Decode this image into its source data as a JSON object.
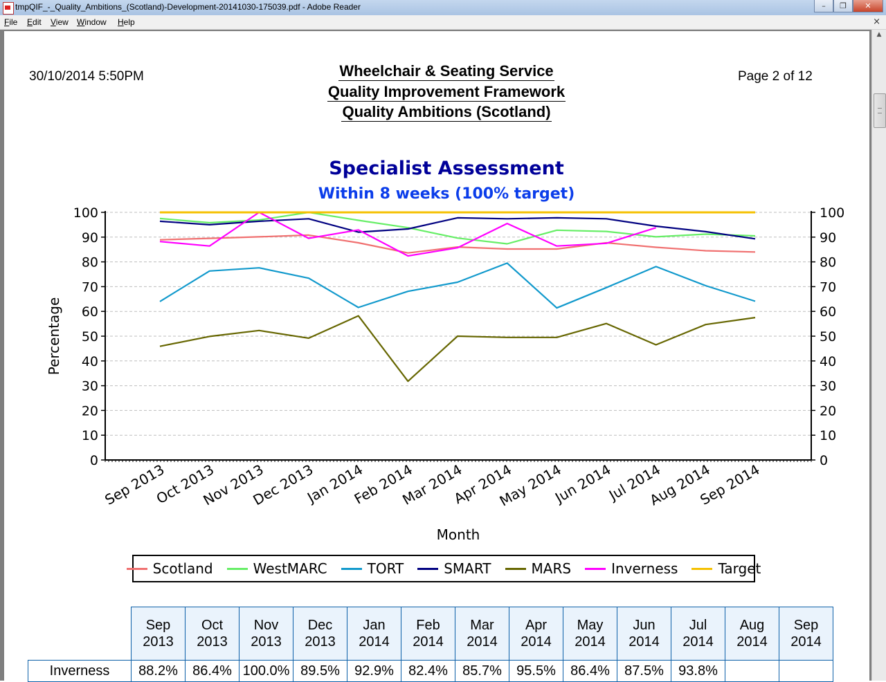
{
  "window": {
    "title": "tmpQIF_-_Quality_Ambitions_(Scotland)-Development-20141030-175039.pdf - Adobe Reader",
    "minimize": "–",
    "maximize": "❐",
    "close": "✕"
  },
  "menu": [
    "File",
    "Edit",
    "View",
    "Window",
    "Help"
  ],
  "menu_close": "×",
  "report": {
    "date": "30/10/2014 5:50PM",
    "page": "Page 2 of 12",
    "title_lines": [
      "Wheelchair & Seating Service",
      "Quality Improvement Framework",
      "Quality Ambitions (Scotland)"
    ]
  },
  "chart_data": {
    "type": "line",
    "title": "Specialist Assessment",
    "subtitle": "Within 8 weeks (100% target)",
    "xlabel": "Month",
    "ylabel": "Percentage",
    "ylim": [
      0,
      100
    ],
    "yticks": [
      0,
      10,
      20,
      30,
      40,
      50,
      60,
      70,
      80,
      90,
      100
    ],
    "grid": true,
    "legend_position": "bottom",
    "categories": [
      "Sep 2013",
      "Oct 2013",
      "Nov 2013",
      "Dec 2013",
      "Jan 2014",
      "Feb 2014",
      "Mar 2014",
      "Apr 2014",
      "May 2014",
      "Jun 2014",
      "Jul 2014",
      "Aug 2014",
      "Sep 2014"
    ],
    "series": [
      {
        "name": "Scotland",
        "color": "#f07070",
        "values": [
          88.9,
          89.5,
          90.1,
          90.8,
          87.7,
          83.6,
          86.0,
          85.2,
          85.2,
          87.7,
          85.9,
          84.5,
          84.0
        ]
      },
      {
        "name": "WestMARC",
        "color": "#66ee66",
        "values": [
          97.5,
          95.8,
          96.9,
          100.0,
          96.8,
          93.8,
          89.6,
          87.3,
          92.8,
          92.3,
          90.1,
          91.2,
          90.5
        ]
      },
      {
        "name": "TORT",
        "color": "#1199cc",
        "values": [
          64.0,
          76.3,
          77.6,
          73.4,
          61.6,
          68.1,
          71.8,
          79.5,
          61.4,
          69.6,
          78.1,
          70.4,
          64.1
        ]
      },
      {
        "name": "SMART",
        "color": "#000080",
        "values": [
          96.4,
          95.0,
          96.4,
          97.4,
          92.0,
          93.3,
          97.8,
          97.4,
          97.8,
          97.4,
          94.4,
          92.2,
          89.3
        ]
      },
      {
        "name": "MARS",
        "color": "#666600",
        "values": [
          45.9,
          49.9,
          52.3,
          49.2,
          58.2,
          31.8,
          50.0,
          49.5,
          49.5,
          55.1,
          46.5,
          54.7,
          57.5
        ]
      },
      {
        "name": "Inverness",
        "color": "#ff00ff",
        "values": [
          88.2,
          86.4,
          100.0,
          89.5,
          92.9,
          82.4,
          85.7,
          95.5,
          86.4,
          87.5,
          93.8,
          null,
          null
        ]
      },
      {
        "name": "Target",
        "color": "#f5c000",
        "values": [
          100,
          100,
          100,
          100,
          100,
          100,
          100,
          100,
          100,
          100,
          100,
          100,
          100
        ]
      }
    ]
  },
  "table": {
    "headers": [
      [
        "Sep",
        "2013"
      ],
      [
        "Oct",
        "2013"
      ],
      [
        "Nov",
        "2013"
      ],
      [
        "Dec",
        "2013"
      ],
      [
        "Jan",
        "2014"
      ],
      [
        "Feb",
        "2014"
      ],
      [
        "Mar",
        "2014"
      ],
      [
        "Apr",
        "2014"
      ],
      [
        "May",
        "2014"
      ],
      [
        "Jun",
        "2014"
      ],
      [
        "Jul",
        "2014"
      ],
      [
        "Aug",
        "2014"
      ],
      [
        "Sep",
        "2014"
      ]
    ],
    "rows": [
      {
        "label": "Inverness",
        "cells": [
          "88.2%",
          "86.4%",
          "100.0%",
          "89.5%",
          "92.9%",
          "82.4%",
          "85.7%",
          "95.5%",
          "86.4%",
          "87.5%",
          "93.8%",
          "",
          ""
        ]
      }
    ]
  }
}
